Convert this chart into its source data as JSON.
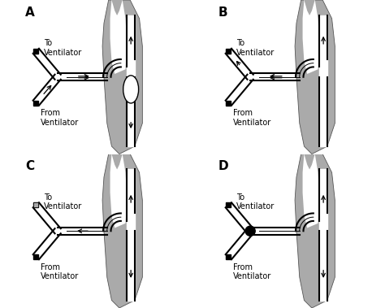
{
  "panels": [
    "A",
    "B",
    "C",
    "D"
  ],
  "background_color": "#ffffff",
  "anatomy_gray": "#aaaaaa",
  "tube_lw": 1.5,
  "arrow_lw": 1.0,
  "panel_fs": 11,
  "label_fs": 7
}
